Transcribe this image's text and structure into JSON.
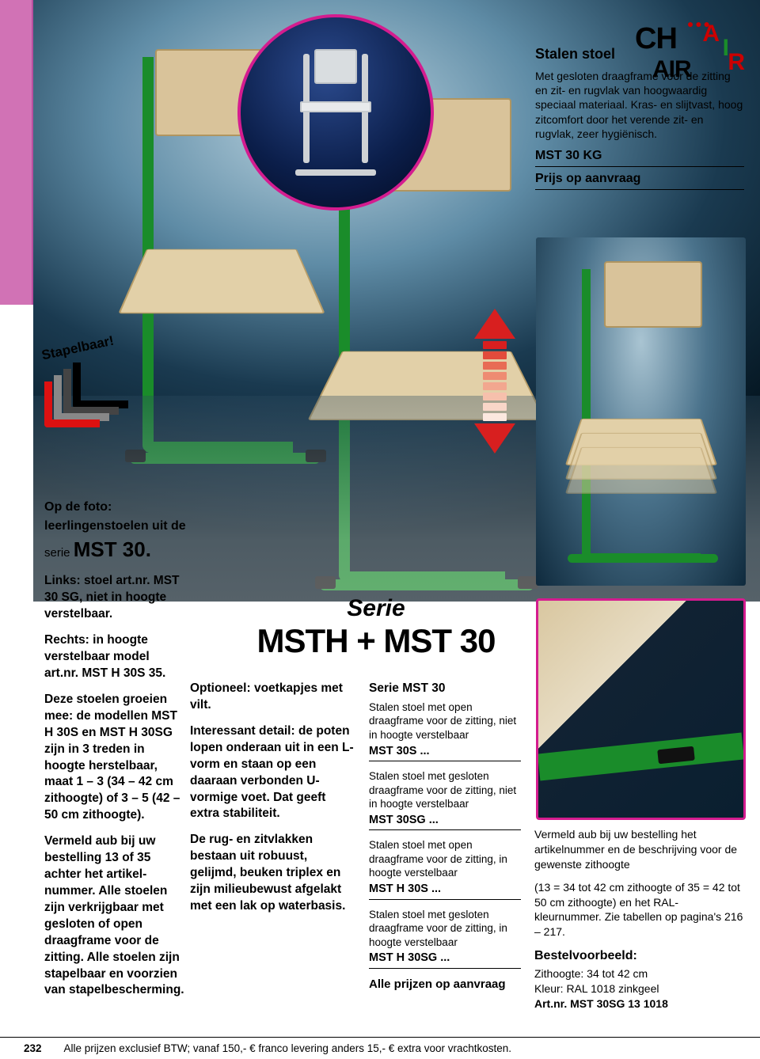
{
  "colors": {
    "magenta": "#d41c8f",
    "pink_tab": "#d172b5",
    "green": "#1a8c2a",
    "red": "#d81f1f",
    "wood": "#d9c39a"
  },
  "logo": {
    "word": "CHAIR",
    "tag": "AIR"
  },
  "top_right": {
    "title": "Stalen stoel",
    "desc": "Met gesloten draagframe voor de zitting en zit- en rugvlak van hoogwaardig speciaal materiaal. Kras- en slijtvast, hoog zitcomfort door het verende zit- en rugvlak, zeer hygiënisch.",
    "model": "MST 30 KG",
    "price": "Prijs op aanvraag"
  },
  "badge": {
    "text": "Stapelbaar!"
  },
  "arrow": {
    "steps": 8,
    "step_colors": [
      "#d81f1f",
      "#e24b3c",
      "#e86b55",
      "#ee8b72",
      "#f2a78f",
      "#f6c0ac",
      "#f9d6c8",
      "#fce8df"
    ]
  },
  "col1": {
    "lead1": "Op de foto:",
    "lead2": "leerlingenstoelen uit de",
    "serie_pre": "serie ",
    "serie_big": "MST 30.",
    "p1": "Links: stoel art.nr. MST 30 SG, niet in hoogte verstelbaar.",
    "p2": "Rechts: in hoogte verstelbaar model art.nr. MST H 30S 35.",
    "p3": "Deze stoelen groeien mee: de modellen MST H 30S en MST H 30SG zijn in 3 treden in hoogte herstelbaar, maat 1 – 3 (34 – 42 cm zithoogte) of 3 – 5 (42 – 50 cm zithoogte).",
    "p4": "Vermeld aub bij uw bestelling 13 of 35 achter het artikel­nummer. Alle stoelen zijn verkrijgbaar met gesloten of open draagframe voor de zitting. Alle stoelen zijn stapelbaar en voorzien van stapelbescherming."
  },
  "series_title": {
    "line1": "Serie",
    "line2": "MSTH + MST 30"
  },
  "col2": {
    "p1": "Optioneel: voetkapjes met vilt.",
    "p2": "Interessant detail: de poten lopen onderaan uit in een L-vorm en staan op een daaraan verbonden U-vormige voet. Dat geeft extra stabiliteit.",
    "p3": "De rug- en zitvlakken bestaan uit robuust, gelijmd, beuken triplex en zijn milieubewust afgelakt met een lak op waterbasis."
  },
  "col3": {
    "title": "Serie MST 30",
    "items": [
      {
        "desc": "Stalen stoel met open draagframe voor de zitting, niet in hoogte verstelbaar",
        "code": "MST 30S ..."
      },
      {
        "desc": "Stalen stoel met gesloten draagframe voor de zitting, niet in hoogte verstelbaar",
        "code": "MST 30SG ..."
      },
      {
        "desc": "Stalen stoel met open draagframe voor de zitting, in hoogte verstelbaar",
        "code": "MST H 30S ..."
      },
      {
        "desc": "Stalen stoel met gesloten draagframe voor de zitting, in hoogte verstelbaar",
        "code": "MST H 30SG ..."
      }
    ],
    "all": "Alle prijzen op aanvraag"
  },
  "col4": {
    "p1": "Vermeld aub bij uw bestelling het artikelnummer en de beschrijving voor de gewenste zithoogte",
    "p2": "(13 = 34 tot 42 cm zithoogte of 35 = 42 tot 50 cm zithoogte) en het RAL-kleurnummer. Zie tabellen op pagina's 216 – 217.",
    "ex_title": "Bestelvoorbeeld:",
    "ex_l1": "Zithoogte: 34 tot 42 cm",
    "ex_l2": "Kleur: RAL 1018 zinkgeel",
    "ex_l3_label": "Art.nr. ",
    "ex_l3_code": "MST 30SG 13 1018"
  },
  "footer": {
    "page": "232",
    "text": "Alle prijzen exclusief BTW; vanaf 150,- € franco levering anders 15,- € extra voor vrachtkosten."
  }
}
